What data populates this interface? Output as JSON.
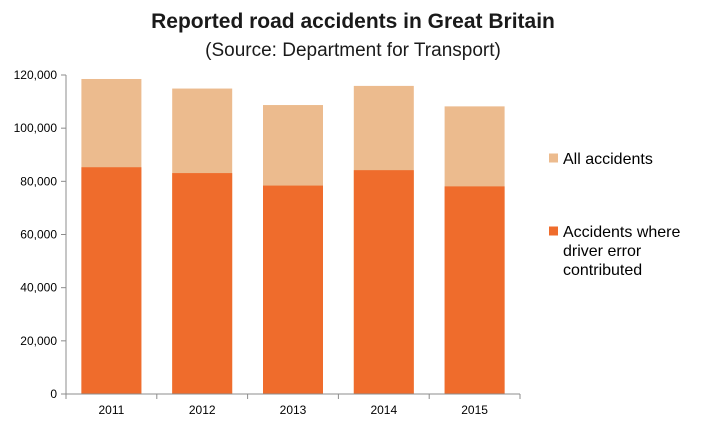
{
  "chart_data": {
    "type": "bar",
    "stacked": false,
    "overlay": true,
    "title": "Reported road accidents in Great Britain",
    "subtitle": "(Source: Department for Transport)",
    "xlabel": "",
    "ylabel": "",
    "categories": [
      "2011",
      "2012",
      "2013",
      "2014",
      "2015"
    ],
    "series": [
      {
        "name": "All accidents",
        "color": "#ecbb8e",
        "values": [
          118500,
          114900,
          108700,
          115900,
          108200
        ]
      },
      {
        "name": "Accidents where driver error contributed",
        "name_lines": [
          "Accidents where",
          "driver error",
          "contributed"
        ],
        "color": "#ef6c2c",
        "values": [
          85300,
          83100,
          78400,
          84200,
          78100
        ]
      }
    ],
    "ylim": [
      0,
      120000
    ],
    "yticks": [
      0,
      20000,
      40000,
      60000,
      80000,
      100000,
      120000
    ],
    "ytick_labels": [
      "0",
      "20,000",
      "40,000",
      "60,000",
      "80,000",
      "100,000",
      "120,000"
    ],
    "grid": false,
    "legend": "right",
    "background": "#ffffff",
    "axis_color": "#8c8c8c"
  }
}
